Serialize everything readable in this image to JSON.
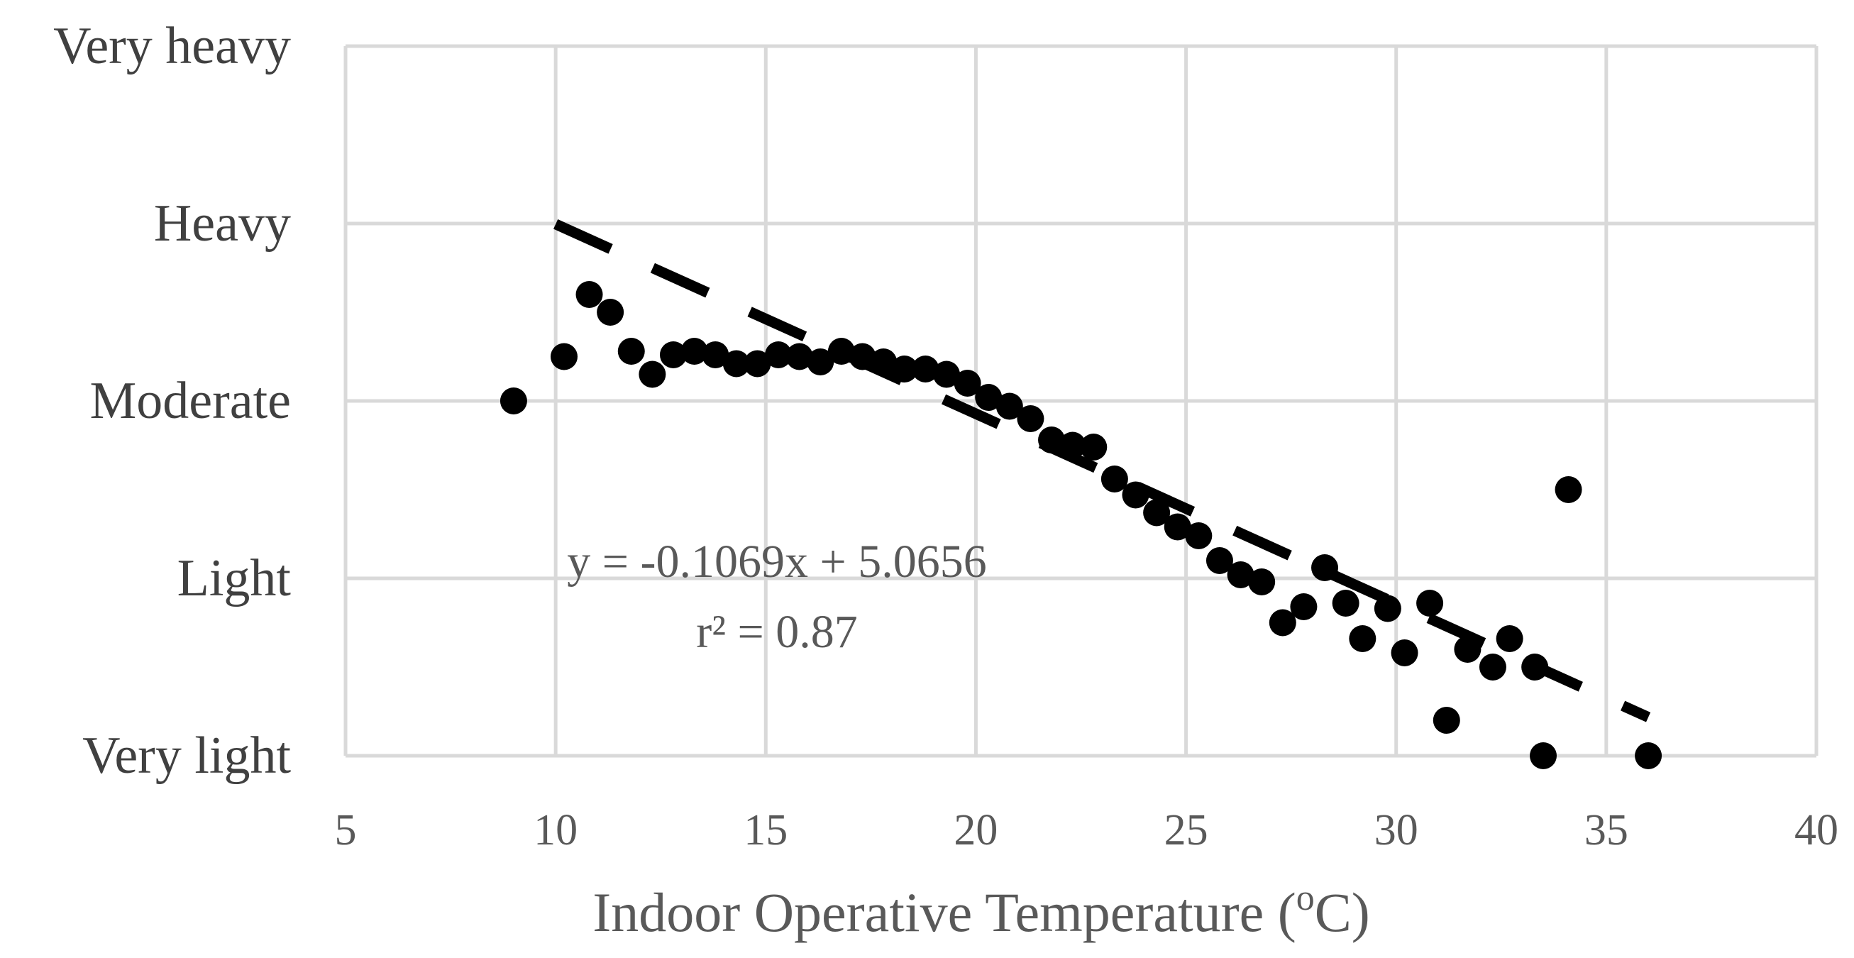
{
  "chart_data": {
    "type": "scatter",
    "title": "",
    "xlabel_main": "Indoor Operative Temperature (",
    "xlabel_sup": "o",
    "xlabel_end": "C)",
    "ylabel": "",
    "xlim": [
      5,
      40
    ],
    "ylim": [
      1,
      5
    ],
    "grid": true,
    "x_ticks": [
      "5",
      "10",
      "15",
      "20",
      "25",
      "30",
      "35",
      "40"
    ],
    "x_tick_values": [
      5,
      10,
      15,
      20,
      25,
      30,
      35,
      40
    ],
    "y_categories": [
      "Very light",
      "Light",
      "Moderate",
      "Heavy",
      "Very heavy"
    ],
    "y_category_values": [
      1,
      2,
      3,
      4,
      5
    ],
    "trendline": {
      "style": "dashed",
      "slope": -0.1069,
      "intercept": 5.0656,
      "x_range": [
        10,
        36
      ],
      "equation": "y = -0.1069x + 5.0656",
      "r2": "r² = 0.87"
    },
    "series": [
      {
        "name": "observations",
        "points": [
          [
            9.0,
            3.0
          ],
          [
            10.2,
            3.25
          ],
          [
            10.8,
            3.6
          ],
          [
            11.3,
            3.5
          ],
          [
            11.8,
            3.28
          ],
          [
            12.3,
            3.15
          ],
          [
            12.8,
            3.26
          ],
          [
            13.3,
            3.28
          ],
          [
            13.8,
            3.26
          ],
          [
            14.3,
            3.21
          ],
          [
            14.8,
            3.21
          ],
          [
            15.3,
            3.26
          ],
          [
            15.8,
            3.25
          ],
          [
            16.3,
            3.22
          ],
          [
            16.8,
            3.28
          ],
          [
            17.3,
            3.25
          ],
          [
            17.8,
            3.22
          ],
          [
            18.3,
            3.18
          ],
          [
            18.8,
            3.18
          ],
          [
            19.3,
            3.15
          ],
          [
            19.8,
            3.1
          ],
          [
            20.3,
            3.02
          ],
          [
            20.8,
            2.97
          ],
          [
            21.3,
            2.9
          ],
          [
            21.8,
            2.78
          ],
          [
            22.3,
            2.75
          ],
          [
            22.8,
            2.74
          ],
          [
            23.3,
            2.56
          ],
          [
            23.8,
            2.47
          ],
          [
            24.3,
            2.37
          ],
          [
            24.8,
            2.29
          ],
          [
            25.3,
            2.24
          ],
          [
            25.8,
            2.1
          ],
          [
            26.3,
            2.02
          ],
          [
            26.8,
            1.98
          ],
          [
            27.3,
            1.75
          ],
          [
            27.8,
            1.84
          ],
          [
            28.3,
            2.06
          ],
          [
            28.8,
            1.86
          ],
          [
            29.2,
            1.66
          ],
          [
            29.8,
            1.83
          ],
          [
            30.2,
            1.58
          ],
          [
            30.8,
            1.86
          ],
          [
            31.2,
            1.2
          ],
          [
            31.7,
            1.6
          ],
          [
            32.3,
            1.5
          ],
          [
            32.7,
            1.66
          ],
          [
            33.3,
            1.5
          ],
          [
            33.5,
            1.0
          ],
          [
            34.1,
            2.5
          ],
          [
            36.0,
            1.0
          ]
        ]
      }
    ]
  }
}
